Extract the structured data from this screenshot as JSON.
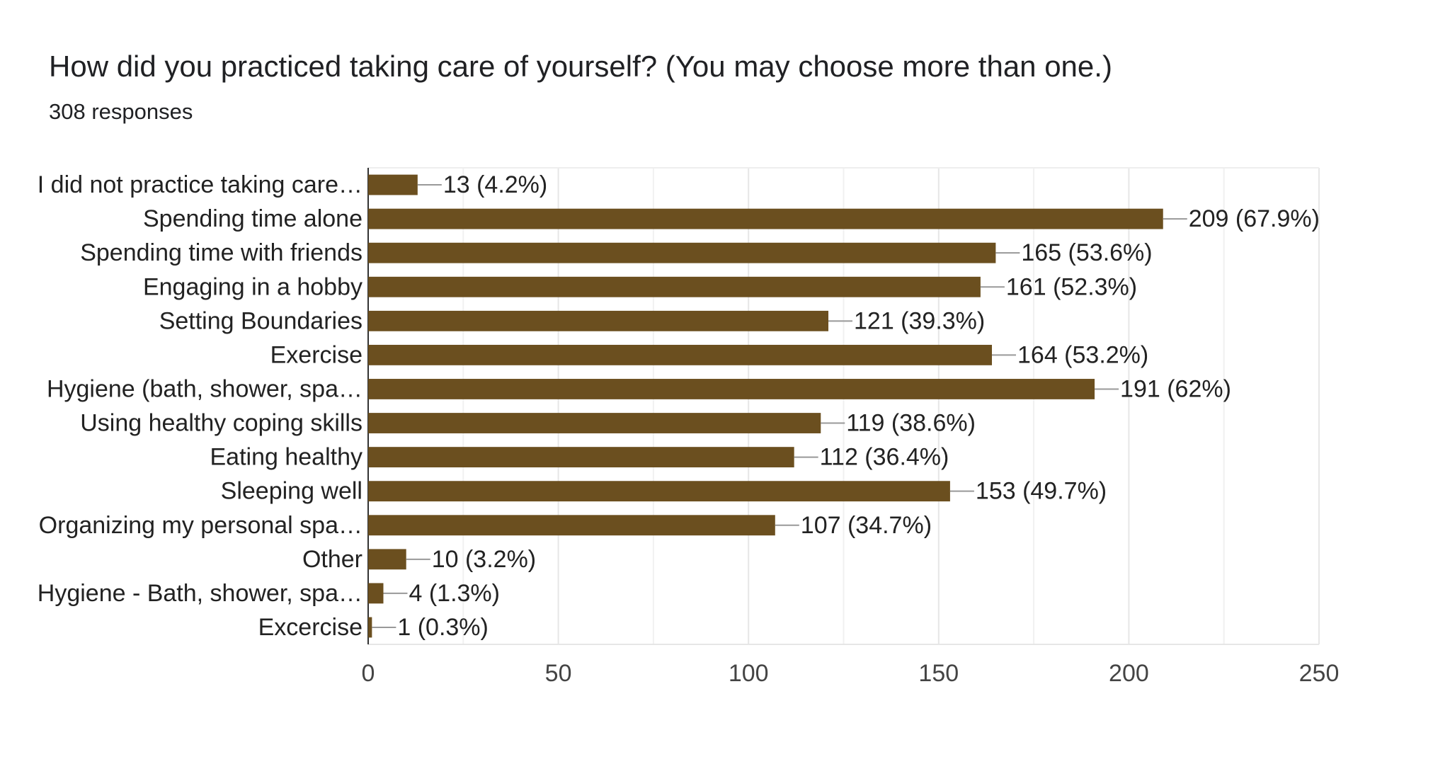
{
  "chart_data": {
    "type": "bar",
    "orientation": "horizontal",
    "title": "How did you practiced taking care of yourself? (You may choose more than one.)",
    "subtitle": "308 responses",
    "categories": [
      "I did not practice taking care…",
      "Spending time alone",
      "Spending time with friends",
      "Engaging in a hobby",
      "Setting Boundaries",
      "Exercise",
      "Hygiene (bath, shower, spa…",
      "Using healthy coping skills",
      "Eating healthy",
      "Sleeping well",
      "Organizing my personal spa…",
      "Other",
      "Hygiene - Bath, shower, spa…",
      "Excercise"
    ],
    "values": [
      13,
      209,
      165,
      161,
      121,
      164,
      191,
      119,
      112,
      153,
      107,
      10,
      4,
      1
    ],
    "data_labels": [
      "13 (4.2%)",
      "209 (67.9%)",
      "165 (53.6%)",
      "161 (52.3%)",
      "121 (39.3%)",
      "164 (53.2%)",
      "191 (62%)",
      "119 (38.6%)",
      "112 (36.4%)",
      "153 (49.7%)",
      "107 (34.7%)",
      "10 (3.2%)",
      "4 (1.3%)",
      "1 (0.3%)"
    ],
    "xlim": [
      0,
      250
    ],
    "xticks": [
      "0",
      "50",
      "100",
      "150",
      "200",
      "250"
    ],
    "xlabel": "",
    "ylabel": "",
    "grid": true,
    "legend": "none",
    "bar_color": "#6b4f1f"
  }
}
